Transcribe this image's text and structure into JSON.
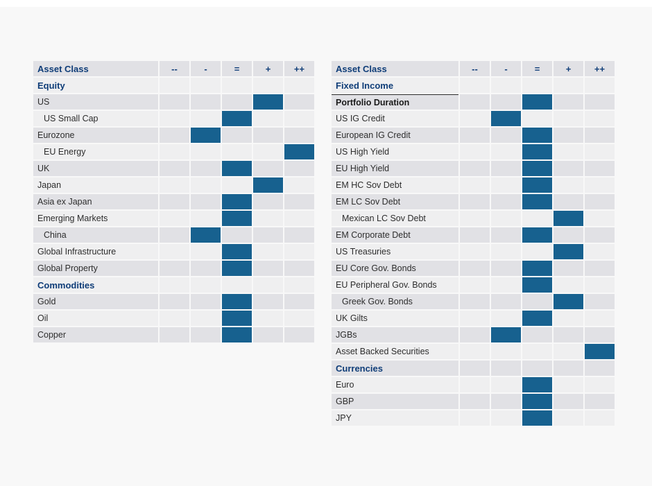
{
  "colors": {
    "page_background": "#f8f8f8",
    "row_dark": "#e1e1e5",
    "row_light": "#efeff0",
    "rating_fill_blue": "#17618f",
    "heading_navy": "#0f3d78",
    "body_text": "#2d2d2d"
  },
  "ratings_scale": [
    "--",
    "-",
    "=",
    "+",
    "++"
  ],
  "tables": [
    {
      "header_label": "Asset Class",
      "rows": [
        {
          "label": "Equity",
          "type": "category",
          "indent": false,
          "rating": null
        },
        {
          "label": "US",
          "type": "item",
          "indent": false,
          "rating": "+"
        },
        {
          "label": "US Small Cap",
          "type": "item",
          "indent": true,
          "rating": "="
        },
        {
          "label": "Eurozone",
          "type": "item",
          "indent": false,
          "rating": "-"
        },
        {
          "label": "EU Energy",
          "type": "item",
          "indent": true,
          "rating": "++"
        },
        {
          "label": "UK",
          "type": "item",
          "indent": false,
          "rating": "="
        },
        {
          "label": "Japan",
          "type": "item",
          "indent": false,
          "rating": "+"
        },
        {
          "label": "Asia ex Japan",
          "type": "item",
          "indent": false,
          "rating": "="
        },
        {
          "label": "Emerging Markets",
          "type": "item",
          "indent": false,
          "rating": "="
        },
        {
          "label": "China",
          "type": "item",
          "indent": true,
          "rating": "-"
        },
        {
          "label": "Global Infrastructure",
          "type": "item",
          "indent": false,
          "rating": "="
        },
        {
          "label": "Global Property",
          "type": "item",
          "indent": false,
          "rating": "="
        },
        {
          "label": "Commodities",
          "type": "category",
          "indent": false,
          "rating": null
        },
        {
          "label": "Gold",
          "type": "item",
          "indent": false,
          "rating": "="
        },
        {
          "label": "Oil",
          "type": "item",
          "indent": false,
          "rating": "="
        },
        {
          "label": "Copper",
          "type": "item",
          "indent": false,
          "rating": "="
        }
      ]
    },
    {
      "header_label": "Asset Class",
      "rows": [
        {
          "label": "Fixed Income",
          "type": "category",
          "indent": false,
          "rating": null
        },
        {
          "label": "Portfolio Duration",
          "type": "item_bold",
          "indent": false,
          "rating": "=",
          "top_border": true
        },
        {
          "label": "US IG Credit",
          "type": "item",
          "indent": false,
          "rating": "-"
        },
        {
          "label": "European IG Credit",
          "type": "item",
          "indent": false,
          "rating": "="
        },
        {
          "label": "US High Yield",
          "type": "item",
          "indent": false,
          "rating": "="
        },
        {
          "label": "EU High Yield",
          "type": "item",
          "indent": false,
          "rating": "="
        },
        {
          "label": "EM HC Sov Debt",
          "type": "item",
          "indent": false,
          "rating": "="
        },
        {
          "label": "EM LC Sov Debt",
          "type": "item",
          "indent": false,
          "rating": "="
        },
        {
          "label": "Mexican LC Sov Debt",
          "type": "item",
          "indent": true,
          "rating": "+"
        },
        {
          "label": "EM Corporate Debt",
          "type": "item",
          "indent": false,
          "rating": "="
        },
        {
          "label": "US Treasuries",
          "type": "item",
          "indent": false,
          "rating": "+"
        },
        {
          "label": "EU Core Gov. Bonds",
          "type": "item",
          "indent": false,
          "rating": "="
        },
        {
          "label": "EU Peripheral Gov. Bonds",
          "type": "item",
          "indent": false,
          "rating": "="
        },
        {
          "label": "Greek Gov. Bonds",
          "type": "item",
          "indent": true,
          "rating": "+"
        },
        {
          "label": "UK Gilts",
          "type": "item",
          "indent": false,
          "rating": "="
        },
        {
          "label": "JGBs",
          "type": "item",
          "indent": false,
          "rating": "-"
        },
        {
          "label": "Asset Backed Securities",
          "type": "item",
          "indent": false,
          "rating": "++"
        },
        {
          "label": "Currencies",
          "type": "category",
          "indent": false,
          "rating": null
        },
        {
          "label": "Euro",
          "type": "item",
          "indent": false,
          "rating": "="
        },
        {
          "label": "GBP",
          "type": "item",
          "indent": false,
          "rating": "="
        },
        {
          "label": "JPY",
          "type": "item",
          "indent": false,
          "rating": "="
        }
      ]
    }
  ]
}
